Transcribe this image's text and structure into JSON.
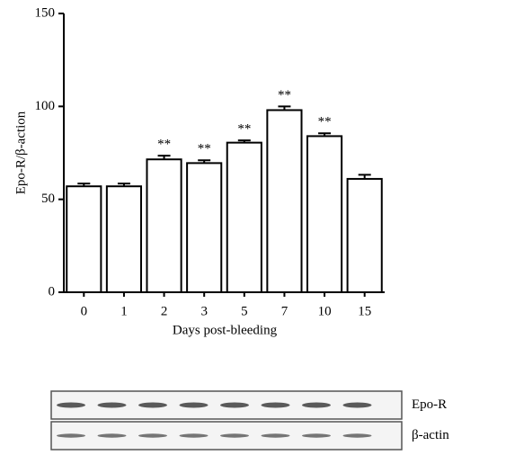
{
  "chart_data": {
    "type": "bar",
    "categories": [
      "0",
      "1",
      "2",
      "3",
      "5",
      "7",
      "10",
      "15"
    ],
    "values": [
      57,
      57,
      71.5,
      69.5,
      80.5,
      98,
      84,
      61
    ],
    "errors": [
      1.5,
      1.5,
      2,
      1.5,
      1.2,
      2,
      1.5,
      2.2
    ],
    "annotations": [
      null,
      null,
      "**",
      "**",
      "**",
      "**",
      "**",
      null
    ],
    "color": "#ffffff",
    "y_label": "Epo-R/β-action",
    "x_label": "Days post-bleeding",
    "ylim": [
      0,
      150
    ],
    "yticks": [
      0,
      50,
      100,
      150
    ],
    "grid": false
  },
  "blot": {
    "rows": [
      "Epo-R",
      "β-actin"
    ]
  }
}
